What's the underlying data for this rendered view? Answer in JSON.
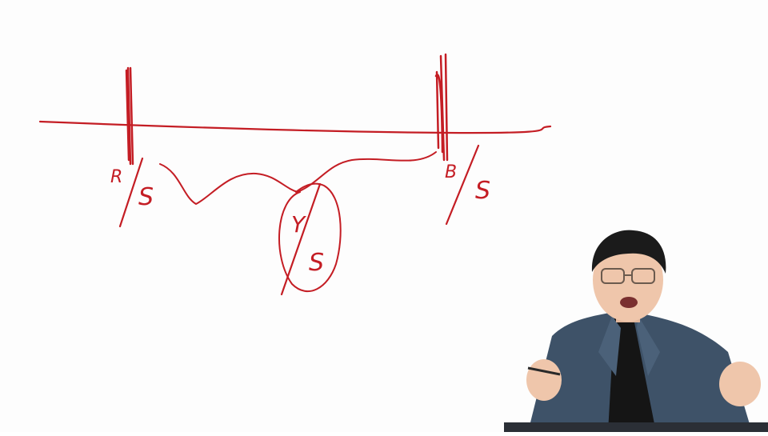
{
  "whiteboard": {
    "left_label_top": "R",
    "left_label_bottom": "S",
    "middle_label_top": "Y",
    "middle_label_bottom": "S",
    "right_label_top": "B",
    "right_label_bottom": "S",
    "ink_color": "#c41d24"
  },
  "presenter": {
    "description_icon": "person-icon",
    "suit_color": "#3e5268",
    "shirt_color": "#151515"
  }
}
